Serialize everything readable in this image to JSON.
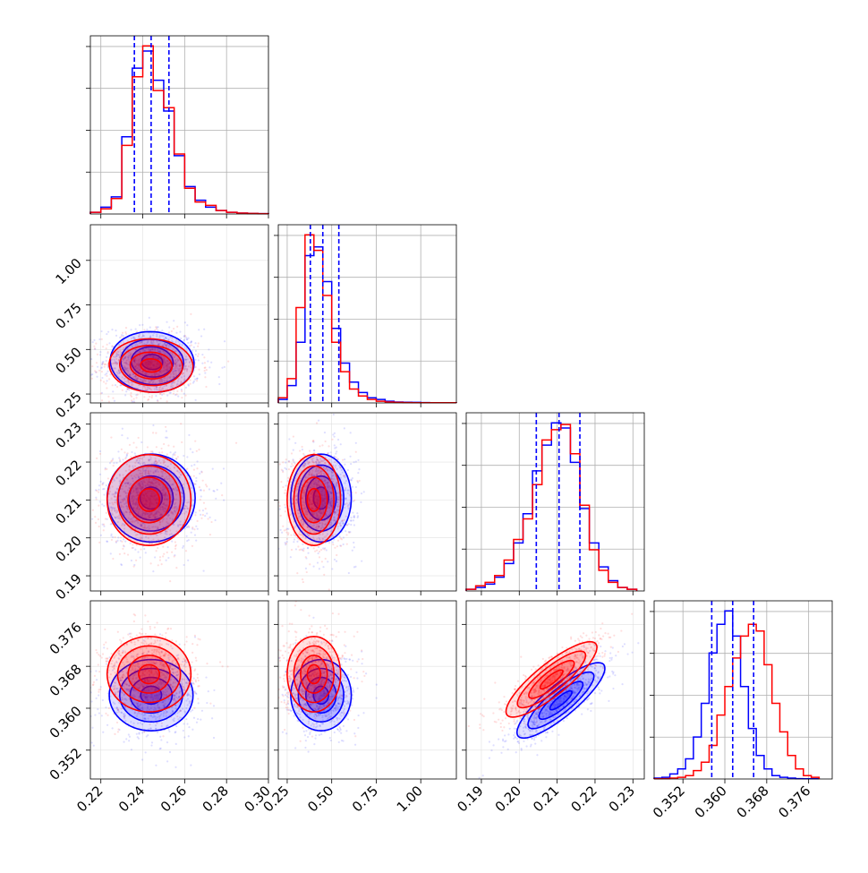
{
  "chart_data": {
    "type": "corner",
    "grid": true,
    "series": [
      {
        "name": "",
        "color": "#0000ff"
      },
      {
        "name": "",
        "color": "#ff0000"
      }
    ],
    "params": [
      {
        "id": "p1",
        "range": [
          0.215,
          0.3
        ],
        "ticks": [
          "0.22",
          "0.24",
          "0.26",
          "0.28",
          "0.30"
        ],
        "tick_values": [
          0.22,
          0.24,
          0.26,
          0.28,
          0.3
        ]
      },
      {
        "id": "p2",
        "range": [
          0.2,
          1.2
        ],
        "ticks": [
          "0.25",
          "0.50",
          "0.75",
          "1.00"
        ],
        "tick_values": [
          0.25,
          0.5,
          0.75,
          1.0
        ]
      },
      {
        "id": "p3",
        "range": [
          0.186,
          0.233
        ],
        "ticks": [
          "0.19",
          "0.20",
          "0.21",
          "0.22",
          "0.23"
        ],
        "tick_values": [
          0.19,
          0.2,
          0.21,
          0.22,
          0.23
        ]
      },
      {
        "id": "p4",
        "range": [
          0.3465,
          0.3805
        ],
        "ticks": [
          "0.352",
          "0.360",
          "0.368",
          "0.376"
        ],
        "tick_values": [
          0.352,
          0.36,
          0.368,
          0.376
        ]
      }
    ],
    "quantiles": [
      {
        "param": "p1",
        "values": [
          0.236,
          0.244,
          0.2525
        ]
      },
      {
        "param": "p2",
        "values": [
          0.38,
          0.45,
          0.54
        ]
      },
      {
        "param": "p3",
        "values": [
          0.2045,
          0.2105,
          0.216
        ]
      },
      {
        "param": "p4",
        "values": [
          0.3575,
          0.3615,
          0.3655
        ]
      }
    ],
    "marginals": [
      {
        "param": "p1",
        "bins": [
          0.215,
          0.22,
          0.225,
          0.23,
          0.235,
          0.24,
          0.245,
          0.25,
          0.255,
          0.26,
          0.265,
          0.27,
          0.275,
          0.28,
          0.285,
          0.29,
          0.295,
          0.3
        ],
        "series": [
          {
            "name": "blue",
            "counts": [
              1,
              4,
              10,
              45,
              85,
              95,
              78,
              60,
              34,
              16,
              8,
              4,
              2,
              1,
              0.5,
              0.3,
              0.2
            ]
          },
          {
            "name": "red",
            "counts": [
              1,
              3,
              9,
              40,
              80,
              98,
              72,
              62,
              35,
              15,
              7,
              5,
              2,
              1,
              0.5,
              0.3,
              0.2
            ]
          }
        ]
      },
      {
        "param": "p2",
        "bins": [
          0.2,
          0.25,
          0.3,
          0.35,
          0.4,
          0.45,
          0.5,
          0.55,
          0.6,
          0.65,
          0.7,
          0.75,
          0.8,
          0.85,
          0.9,
          0.95,
          1.0,
          1.05,
          1.1,
          1.15,
          1.2
        ],
        "series": [
          {
            "name": "blue",
            "counts": [
              2,
              10,
              35,
              85,
              90,
              70,
              43,
              23,
              12,
              6,
              3,
              2,
              1,
              0.5,
              0.4,
              0.3,
              0.2,
              0.1,
              0.1,
              0.1
            ]
          },
          {
            "name": "red",
            "counts": [
              3,
              14,
              55,
              97,
              88,
              62,
              35,
              18,
              8,
              4,
              2,
              1,
              0.5,
              0.3,
              0.2,
              0.1,
              0.1,
              0.1,
              0.1,
              0.1
            ]
          }
        ]
      },
      {
        "param": "p3",
        "bins": [
          0.186,
          0.1885,
          0.191,
          0.1935,
          0.196,
          0.1985,
          0.201,
          0.2035,
          0.206,
          0.2085,
          0.211,
          0.2135,
          0.216,
          0.2185,
          0.221,
          0.2235,
          0.226,
          0.2285,
          0.231
        ],
        "series": [
          {
            "name": "blue",
            "counts": [
              1,
              2,
              4,
              8,
              16,
              28,
              45,
              70,
              85,
              98,
              95,
              75,
              48,
              28,
              14,
              6,
              2,
              1
            ]
          },
          {
            "name": "red",
            "counts": [
              1,
              3,
              5,
              9,
              18,
              30,
              42,
              62,
              88,
              94,
              97,
              80,
              50,
              24,
              12,
              5,
              2,
              1
            ]
          }
        ]
      },
      {
        "param": "p4",
        "bins": [
          0.3465,
          0.348,
          0.3495,
          0.351,
          0.3525,
          0.354,
          0.3555,
          0.357,
          0.3585,
          0.36,
          0.3615,
          0.363,
          0.3645,
          0.366,
          0.3675,
          0.369,
          0.3705,
          0.372,
          0.3735,
          0.375,
          0.3765,
          0.378
        ],
        "series": [
          {
            "name": "blue",
            "counts": [
              0.5,
              1,
              3,
              6,
              12,
              25,
              45,
              75,
              92,
              100,
              85,
              55,
              30,
              14,
              6,
              2,
              1,
              0.5,
              0.2,
              0.1,
              0.1
            ]
          },
          {
            "name": "red",
            "counts": [
              0.1,
              0.2,
              0.5,
              1,
              2,
              5,
              10,
              20,
              38,
              55,
              72,
              85,
              92,
              88,
              68,
              45,
              28,
              14,
              6,
              2,
              1
            ]
          }
        ]
      }
    ],
    "joint_2d": [
      {
        "x": "p1",
        "y": "p2",
        "series": [
          {
            "name": "blue",
            "mean": [
              0.2445,
              0.43
            ],
            "sd": [
              0.01,
              0.085
            ],
            "rho": -0.05
          },
          {
            "name": "red",
            "mean": [
              0.244,
              0.41
            ],
            "sd": [
              0.01,
              0.075
            ],
            "rho": -0.05
          }
        ]
      },
      {
        "x": "p1",
        "y": "p3",
        "series": [
          {
            "name": "blue",
            "mean": [
              0.244,
              0.2105
            ],
            "sd": [
              0.0105,
              0.0058
            ],
            "rho": 0.0
          },
          {
            "name": "red",
            "mean": [
              0.243,
              0.21
            ],
            "sd": [
              0.01,
              0.006
            ],
            "rho": 0.0
          }
        ]
      },
      {
        "x": "p1",
        "y": "p4",
        "series": [
          {
            "name": "blue",
            "mean": [
              0.244,
              0.3625
            ],
            "sd": [
              0.01,
              0.0034
            ],
            "rho": 0.0
          },
          {
            "name": "red",
            "mean": [
              0.243,
              0.3665
            ],
            "sd": [
              0.01,
              0.0036
            ],
            "rho": 0.0
          }
        ]
      },
      {
        "x": "p2",
        "y": "p3",
        "series": [
          {
            "name": "blue",
            "mean": [
              0.44,
              0.2105
            ],
            "sd": [
              0.085,
              0.0058
            ],
            "rho": 0.0
          },
          {
            "name": "red",
            "mean": [
              0.4,
              0.21
            ],
            "sd": [
              0.075,
              0.006
            ],
            "rho": 0.0
          }
        ]
      },
      {
        "x": "p2",
        "y": "p4",
        "series": [
          {
            "name": "blue",
            "mean": [
              0.44,
              0.3625
            ],
            "sd": [
              0.085,
              0.0034
            ],
            "rho": 0.0
          },
          {
            "name": "red",
            "mean": [
              0.4,
              0.3665
            ],
            "sd": [
              0.075,
              0.0036
            ],
            "rho": 0.0
          }
        ]
      },
      {
        "x": "p3",
        "y": "p4",
        "series": [
          {
            "name": "blue",
            "mean": [
              0.211,
              0.3615
            ],
            "sd": [
              0.0058,
              0.0036
            ],
            "rho": 0.85
          },
          {
            "name": "red",
            "mean": [
              0.2085,
              0.3655
            ],
            "sd": [
              0.006,
              0.0036
            ],
            "rho": 0.85
          }
        ]
      }
    ]
  }
}
